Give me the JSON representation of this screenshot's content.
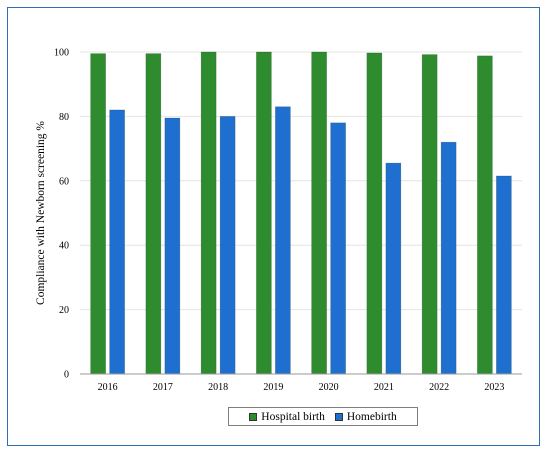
{
  "chart_data": {
    "type": "bar",
    "categories": [
      "2016",
      "2017",
      "2018",
      "2019",
      "2020",
      "2021",
      "2022",
      "2023"
    ],
    "series": [
      {
        "name": "Hospital birth",
        "color": "#2e8b2e",
        "values": [
          99.5,
          99.5,
          100,
          100,
          100,
          99.7,
          99.2,
          98.8
        ]
      },
      {
        "name": "Homebirth",
        "color": "#1f6fd0",
        "values": [
          82,
          79.5,
          80,
          83,
          78,
          65.5,
          72,
          61.5
        ]
      }
    ],
    "title": "",
    "xlabel": "",
    "ylabel": "Compliance with Newborn screening %",
    "ylim": [
      0,
      100
    ],
    "yticks": [
      0,
      20,
      40,
      60,
      80,
      100
    ],
    "grid": true,
    "legend": "bottom"
  }
}
